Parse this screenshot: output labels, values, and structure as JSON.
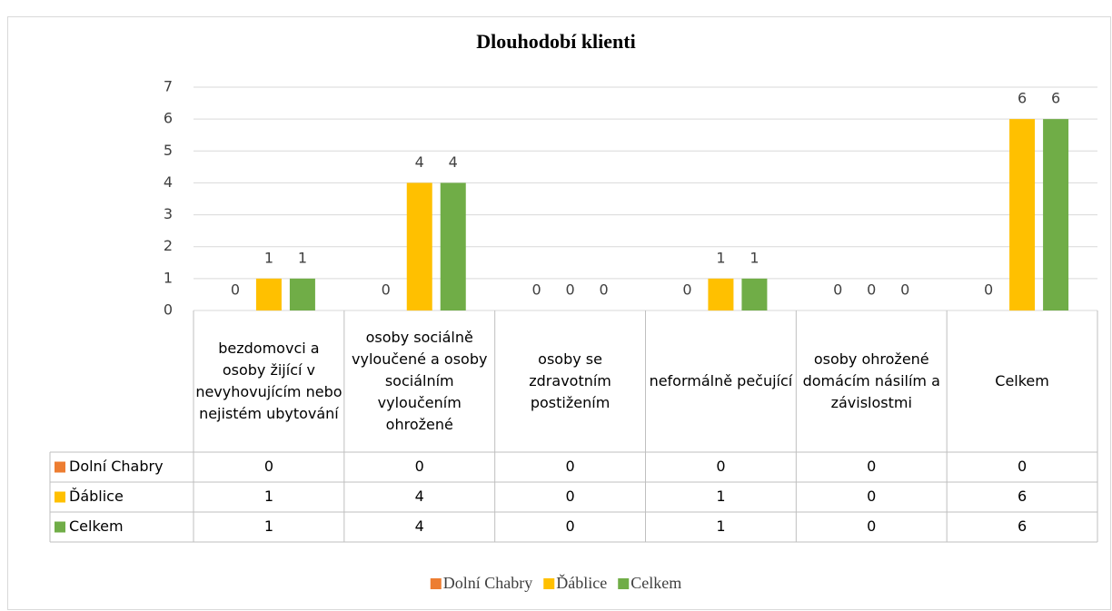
{
  "chart_data": {
    "type": "bar",
    "title": "Dlouhodobí klienti",
    "categories": [
      "bezdomovci a osoby žijící v nevyhovujícím nebo nejistém ubytování",
      "osoby sociálně vyloučené a osoby sociálním vyloučením ohrožené",
      "osoby se zdravotním postižením",
      "neformálně pečující",
      "osoby ohrožené domácím násilím a závislostmi",
      "Celkem"
    ],
    "series": [
      {
        "name": "Dolní Chabry",
        "color": "#ED7D31",
        "values": [
          0,
          0,
          0,
          0,
          0,
          0
        ]
      },
      {
        "name": "Ďáblice",
        "color": "#FFC000",
        "values": [
          1,
          4,
          0,
          1,
          0,
          6
        ]
      },
      {
        "name": "Celkem",
        "color": "#70AD47",
        "values": [
          1,
          4,
          0,
          1,
          0,
          6
        ]
      }
    ],
    "ylim": [
      0,
      7
    ],
    "yticks": [
      0,
      1,
      2,
      3,
      4,
      5,
      6,
      7
    ],
    "grid": true,
    "legend": "bottom",
    "data_table": true
  }
}
